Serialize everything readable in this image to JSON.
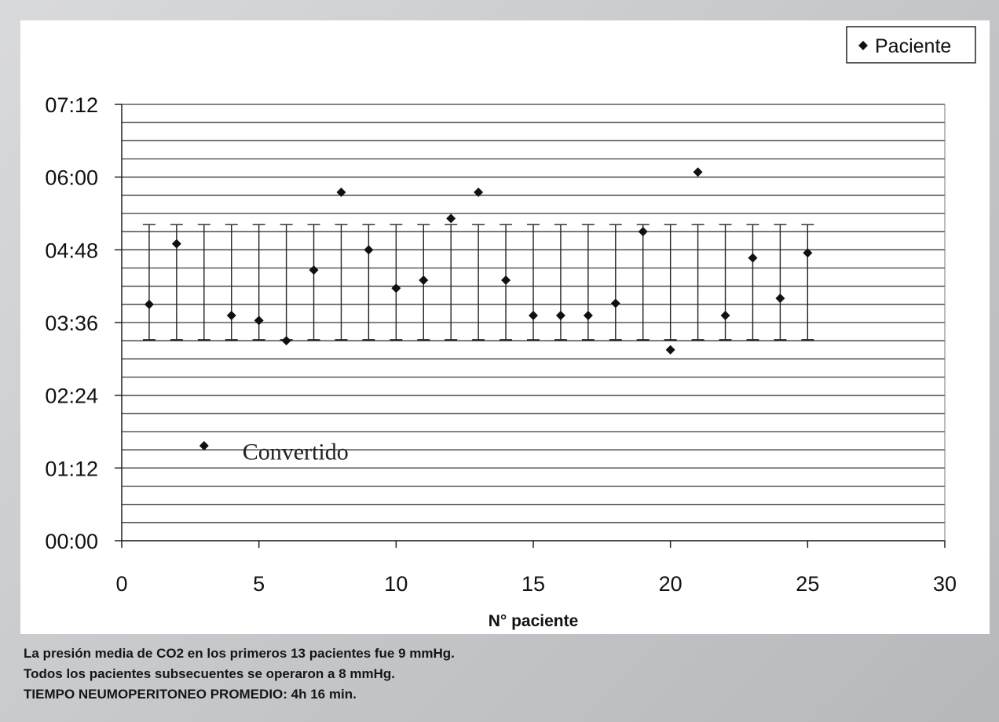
{
  "chart_data": {
    "type": "scatter",
    "xlabel": "N° paciente",
    "xlim": [
      0,
      30
    ],
    "xticks": [
      "0",
      "5",
      "10",
      "15",
      "20",
      "25",
      "30"
    ],
    "ylim": [
      0,
      432
    ],
    "yticks": [
      "00:00",
      "01:12",
      "02:24",
      "03:36",
      "04:48",
      "06:00",
      "07:12"
    ],
    "y_unit": "minutes (hh:mm)",
    "grid": "horizontal",
    "legend": {
      "position": "top-right",
      "entries": [
        "Paciente"
      ]
    },
    "series": [
      {
        "name": "Paciente",
        "x": [
          1,
          2,
          3,
          4,
          5,
          6,
          7,
          8,
          9,
          10,
          11,
          12,
          13,
          14,
          15,
          16,
          17,
          18,
          19,
          20,
          21,
          22,
          23,
          24,
          25
        ],
        "y": [
          234,
          294,
          94,
          223,
          218,
          198,
          268,
          345,
          288,
          250,
          258,
          319,
          345,
          258,
          223,
          223,
          223,
          235,
          306,
          189,
          365,
          223,
          280,
          240,
          285
        ]
      }
    ],
    "error_bars": {
      "x": [
        1,
        2,
        3,
        4,
        5,
        6,
        7,
        8,
        9,
        10,
        11,
        12,
        13,
        14,
        15,
        16,
        17,
        18,
        19,
        20,
        21,
        22,
        23,
        24,
        25
      ],
      "low": 199,
      "high": 313
    },
    "annotations": [
      {
        "text": "Convertido",
        "x": 4.4,
        "y": 88
      }
    ]
  },
  "caption": {
    "line1": "La presión media de CO2 en los primeros 13 pacientes fue 9 mmHg.",
    "line2": "Todos los pacientes subsecuentes se operaron a 8 mmHg.",
    "line3": "TIEMPO NEUMOPERITONEO PROMEDIO: 4h 16 min."
  }
}
